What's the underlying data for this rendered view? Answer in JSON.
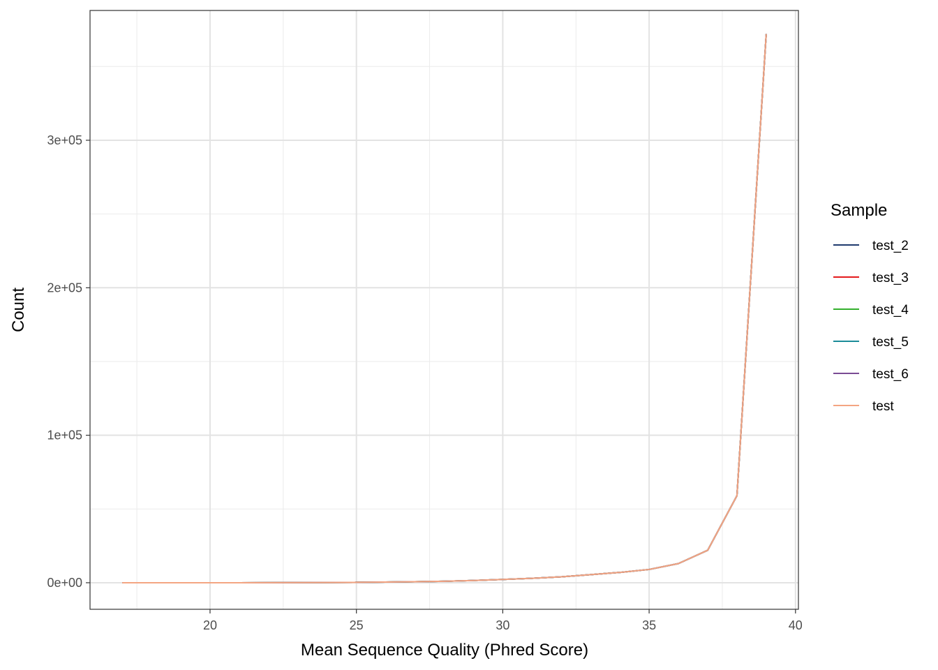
{
  "chart_data": {
    "type": "line",
    "xlabel": "Mean Sequence Quality (Phred Score)",
    "ylabel": "Count",
    "xlim": [
      15.9,
      40.1
    ],
    "ylim": [
      -18000,
      388000
    ],
    "x_ticks": [
      20,
      25,
      30,
      35,
      40
    ],
    "x_tick_labels": [
      "20",
      "25",
      "30",
      "35",
      "40"
    ],
    "y_ticks": [
      0,
      100000,
      200000,
      300000
    ],
    "y_tick_labels": [
      "0e+00",
      "1e+05",
      "2e+05",
      "3e+05"
    ],
    "grid": true,
    "legend": {
      "title": "Sample",
      "position": "right"
    },
    "x": [
      17,
      18,
      19,
      20,
      21,
      22,
      23,
      24,
      25,
      26,
      27,
      28,
      29,
      30,
      31,
      32,
      33,
      34,
      35,
      36,
      37,
      38,
      39
    ],
    "series": [
      {
        "name": "test_2",
        "color": "#1f3a6e",
        "values": [
          0,
          0,
          0,
          0,
          10,
          30,
          80,
          150,
          250,
          450,
          700,
          1000,
          1500,
          2200,
          3000,
          4000,
          5500,
          7000,
          9000,
          13000,
          22000,
          59000,
          372000
        ]
      },
      {
        "name": "test_3",
        "color": "#e41a1c",
        "values": [
          0,
          0,
          0,
          0,
          10,
          30,
          80,
          150,
          250,
          450,
          700,
          1000,
          1500,
          2200,
          3000,
          4000,
          5500,
          7000,
          9000,
          13000,
          22000,
          59000,
          372000
        ]
      },
      {
        "name": "test_4",
        "color": "#33b02c",
        "values": [
          0,
          0,
          0,
          0,
          10,
          30,
          80,
          150,
          250,
          450,
          700,
          1000,
          1500,
          2200,
          3000,
          4000,
          5500,
          7000,
          9000,
          13000,
          22000,
          59000,
          372000
        ]
      },
      {
        "name": "test_5",
        "color": "#1b8c99",
        "values": [
          0,
          0,
          0,
          0,
          10,
          30,
          80,
          150,
          250,
          450,
          700,
          1000,
          1500,
          2200,
          3000,
          4000,
          5500,
          7000,
          9000,
          13000,
          22000,
          59000,
          372000
        ]
      },
      {
        "name": "test_6",
        "color": "#7a4b94",
        "values": [
          0,
          0,
          0,
          0,
          10,
          30,
          80,
          150,
          250,
          450,
          700,
          1000,
          1500,
          2200,
          3000,
          4000,
          5500,
          7000,
          9000,
          13000,
          22000,
          59000,
          372000
        ]
      },
      {
        "name": "test",
        "color": "#f4a582",
        "values": [
          0,
          0,
          0,
          0,
          10,
          30,
          80,
          150,
          250,
          450,
          700,
          1000,
          1500,
          2200,
          3000,
          4000,
          5500,
          7000,
          9000,
          13000,
          22000,
          59000,
          372000
        ]
      }
    ]
  }
}
